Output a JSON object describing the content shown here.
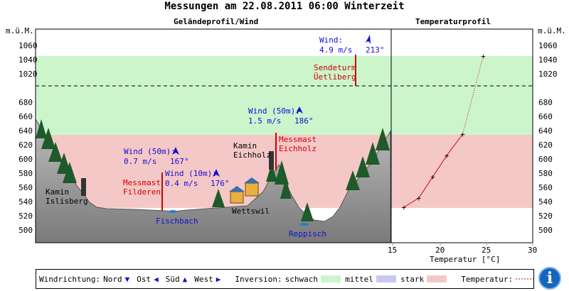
{
  "title": "Messungen am 22.08.2011 06:00 Winterzeit",
  "panels": {
    "profile_title": "Geländeprofil/Wind",
    "temp_title": "Temperaturprofil"
  },
  "axis": {
    "unit": "m.ü.M.",
    "ticks": [
      "1060",
      "1040",
      "1020",
      "680",
      "660",
      "640",
      "620",
      "600",
      "580",
      "560",
      "540",
      "520",
      "500"
    ],
    "temp_ticks": [
      "15",
      "20",
      "25",
      "30"
    ],
    "temp_label": "Temperatur [°C]"
  },
  "colors": {
    "inversion_weak": "#ccf5cc",
    "inversion_medium": "#c8c8f0",
    "inversion_strong": "#f5c8c8",
    "wind": "#1010d0",
    "mast": "#d00000"
  },
  "stations": {
    "uetliberg": {
      "name1": "Sendeturm",
      "name2": "Üetliberg",
      "wind_label": "Wind:",
      "wind_speed": "4.9 m/s",
      "wind_dir": "213°"
    },
    "eichholz": {
      "mast1": "Messmast",
      "mast2": "Eichholz",
      "kamin1": "Kamin",
      "kamin2": "Eichholz",
      "wind_label": "Wind (50m):",
      "wind_speed": "1.5 m/s",
      "wind_dir": "186°"
    },
    "filderen": {
      "mast1": "Messmast",
      "mast2": "Filderen",
      "wind50_label": "Wind (50m):",
      "wind50_speed": "0.7 m/s",
      "wind50_dir": "167°",
      "wind10_label": "Wind (10m):",
      "wind10_speed": "0.4 m/s",
      "wind10_dir": "176°"
    },
    "islisberg": {
      "kamin1": "Kamin",
      "kamin2": "Islisberg"
    }
  },
  "places": {
    "fischbach": "Fischbach",
    "wettswil": "Wettswil",
    "reppisch": "Reppisch"
  },
  "legend": {
    "wind_dir": "Windrichtung:",
    "nord": "Nord",
    "ost": "Ost",
    "sued": "Süd",
    "west": "West",
    "inversion": "Inversion:",
    "weak": "schwach",
    "medium": "mittel",
    "strong": "stark",
    "temperature": "Temperatur:"
  },
  "temperature_profile": [
    {
      "temp": 16.2,
      "alt": 530
    },
    {
      "temp": 17.8,
      "alt": 543
    },
    {
      "temp": 19.3,
      "alt": 573
    },
    {
      "temp": 20.8,
      "alt": 603
    },
    {
      "temp": 22.5,
      "alt": 633
    },
    {
      "temp": 24.7,
      "alt": 1043
    }
  ]
}
